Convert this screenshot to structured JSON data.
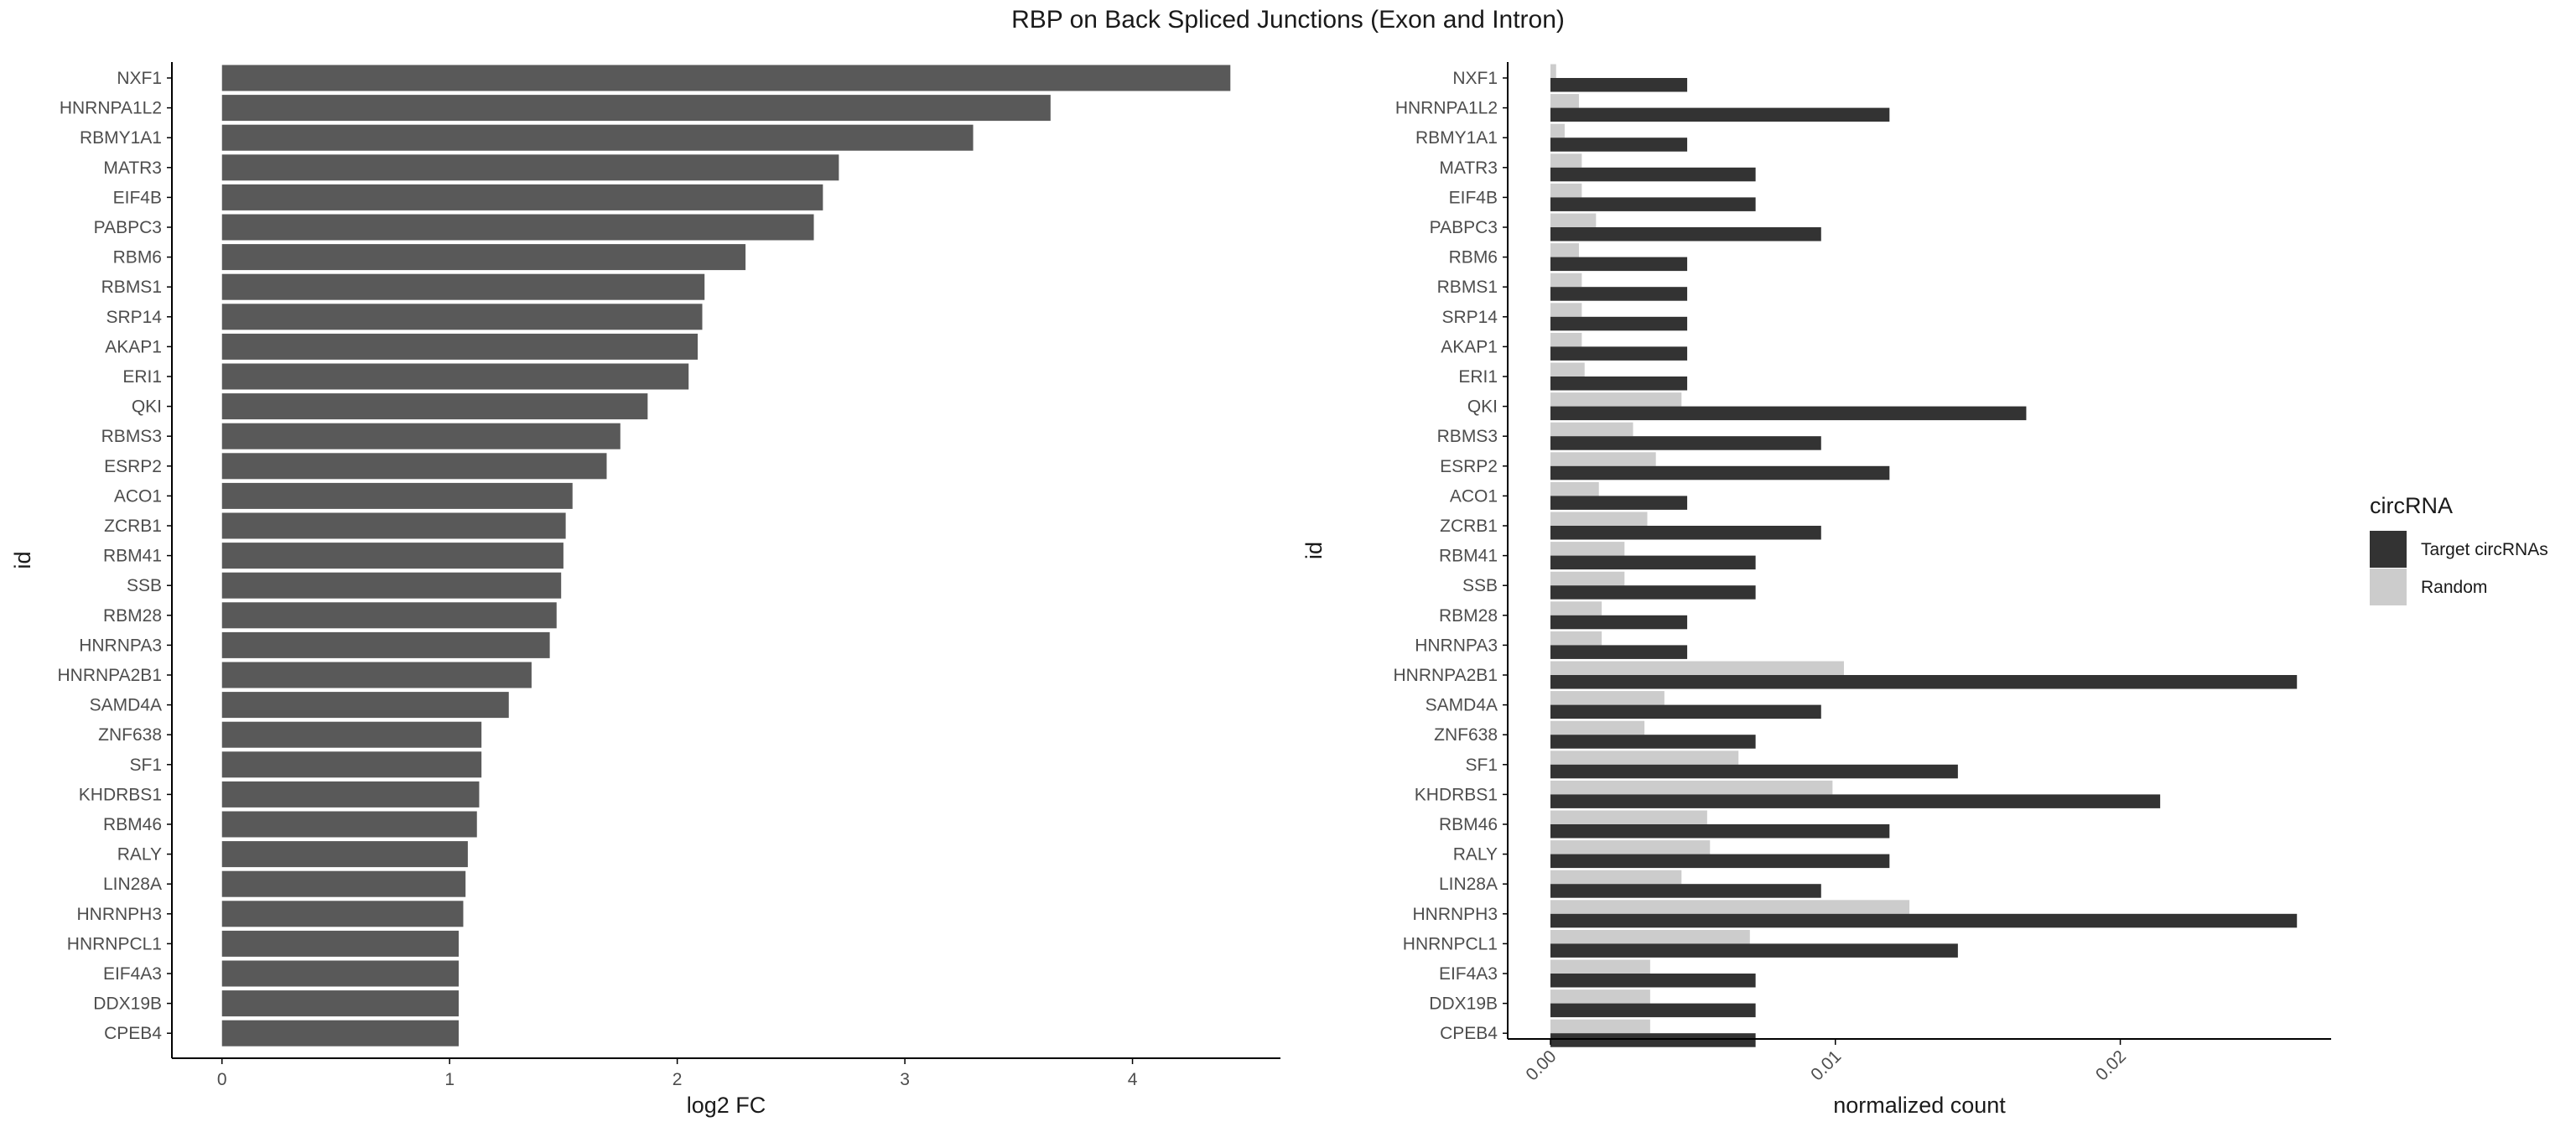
{
  "title": "RBP on Back Spliced Junctions (Exon and Intron)",
  "colors": {
    "bar": "#595959",
    "target": "#333333",
    "random": "#cccccc",
    "axis": "#000000"
  },
  "chart_data": [
    {
      "type": "bar",
      "orientation": "horizontal",
      "xlabel": "log2 FC",
      "ylabel": "id",
      "xlim": [
        -0.22,
        4.65
      ],
      "xticks": [
        "0",
        "1",
        "2",
        "3",
        "4"
      ],
      "grid": false,
      "categories": [
        "NXF1",
        "HNRNPA1L2",
        "RBMY1A1",
        "MATR3",
        "EIF4B",
        "PABPC3",
        "RBM6",
        "RBMS1",
        "SRP14",
        "AKAP1",
        "ERI1",
        "QKI",
        "RBMS3",
        "ESRP2",
        "ACO1",
        "ZCRB1",
        "RBM41",
        "SSB",
        "RBM28",
        "HNRNPA3",
        "HNRNPA2B1",
        "SAMD4A",
        "ZNF638",
        "SF1",
        "KHDRBS1",
        "RBM46",
        "RALY",
        "LIN28A",
        "HNRNPH3",
        "HNRNPCL1",
        "EIF4A3",
        "DDX19B",
        "CPEB4"
      ],
      "values": [
        4.43,
        3.64,
        3.3,
        2.71,
        2.64,
        2.6,
        2.3,
        2.12,
        2.11,
        2.09,
        2.05,
        1.87,
        1.75,
        1.69,
        1.54,
        1.51,
        1.5,
        1.49,
        1.47,
        1.44,
        1.36,
        1.26,
        1.14,
        1.14,
        1.13,
        1.12,
        1.08,
        1.07,
        1.06,
        1.04,
        1.04,
        1.04,
        1.04
      ]
    },
    {
      "type": "bar",
      "orientation": "horizontal",
      "grouped": true,
      "xlabel": "normalized count",
      "ylabel": "id",
      "xlim": [
        -0.0015,
        0.0274
      ],
      "xticks": [
        {
          "value": 0.0,
          "label": "0.00"
        },
        {
          "value": 0.01,
          "label": "0.01"
        },
        {
          "value": 0.02,
          "label": "0.02"
        }
      ],
      "grid": false,
      "legend": {
        "title": "circRNA",
        "placement": "right"
      },
      "categories": [
        "NXF1",
        "HNRNPA1L2",
        "RBMY1A1",
        "MATR3",
        "EIF4B",
        "PABPC3",
        "RBM6",
        "RBMS1",
        "SRP14",
        "AKAP1",
        "ERI1",
        "QKI",
        "RBMS3",
        "ESRP2",
        "ACO1",
        "ZCRB1",
        "RBM41",
        "SSB",
        "RBM28",
        "HNRNPA3",
        "HNRNPA2B1",
        "SAMD4A",
        "ZNF638",
        "SF1",
        "KHDRBS1",
        "RBM46",
        "RALY",
        "LIN28A",
        "HNRNPH3",
        "HNRNPCL1",
        "EIF4A3",
        "DDX19B",
        "CPEB4"
      ],
      "series": [
        {
          "name": "Target circRNAs",
          "color": "#333333",
          "values": [
            0.0048,
            0.0119,
            0.0048,
            0.0072,
            0.0072,
            0.0095,
            0.0048,
            0.0048,
            0.0048,
            0.0048,
            0.0048,
            0.0167,
            0.0095,
            0.0119,
            0.0048,
            0.0095,
            0.0072,
            0.0072,
            0.0048,
            0.0048,
            0.0262,
            0.0095,
            0.0072,
            0.0143,
            0.0214,
            0.0119,
            0.0119,
            0.0095,
            0.0262,
            0.0143,
            0.0072,
            0.0072,
            0.0072
          ]
        },
        {
          "name": "Random",
          "color": "#cccccc",
          "values": [
            0.0002,
            0.001,
            0.0005,
            0.0011,
            0.0011,
            0.0016,
            0.001,
            0.0011,
            0.0011,
            0.0011,
            0.0012,
            0.0046,
            0.0029,
            0.0037,
            0.0017,
            0.0034,
            0.0026,
            0.0026,
            0.0018,
            0.0018,
            0.0103,
            0.004,
            0.0033,
            0.0066,
            0.0099,
            0.0055,
            0.0056,
            0.0046,
            0.0126,
            0.007,
            0.0035,
            0.0035,
            0.0035
          ]
        }
      ]
    }
  ]
}
